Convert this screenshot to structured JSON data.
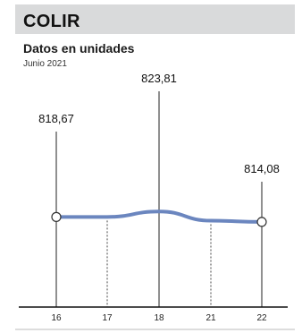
{
  "header": {
    "ticker": "COLIR",
    "subtitle": "Datos en unidades",
    "date": "Junio 2021"
  },
  "colors": {
    "header_band": "#d9dadb",
    "series_line": "#6b86bf",
    "leader_line": "#222222",
    "axis": "#111111",
    "marker_fill": "#ffffff"
  },
  "chart_data": {
    "type": "line",
    "categories": [
      "16",
      "17",
      "18",
      "21",
      "22"
    ],
    "values": [
      818.67,
      818.7,
      823.81,
      815.2,
      814.08
    ],
    "labels": [
      {
        "category": "16",
        "text": "818,67",
        "value": 818.67
      },
      {
        "category": "18",
        "text": "823,81",
        "value": 823.81
      },
      {
        "category": "22",
        "text": "814,08",
        "value": 814.08
      }
    ],
    "markers": [
      "16",
      "22"
    ],
    "gridlines": "dashed-vertical"
  }
}
